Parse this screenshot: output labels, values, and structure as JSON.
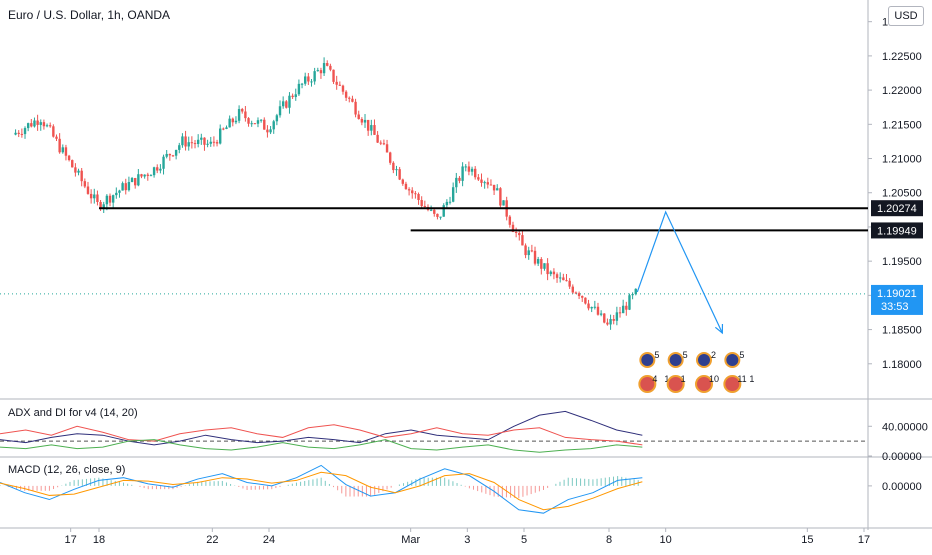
{
  "header": {
    "title": "Euro / U.S. Dollar, 1h, OANDA",
    "currency_button": "USD"
  },
  "colors": {
    "up": "#26a69a",
    "down": "#ef5350",
    "drawing": "#000000",
    "projection": "#2196f3",
    "last_price_bg": "#2196f3",
    "adx": "#2f2f7a",
    "plus_di": "#ef5350",
    "minus_di": "#4caf50",
    "macd_line": "#2196f3",
    "signal_line": "#ff9800"
  },
  "price_axis": {
    "ticks": [
      "1.23000",
      "1.22500",
      "1.22000",
      "1.21500",
      "1.21000",
      "1.20500",
      "1.20000",
      "1.19500",
      "1.19000",
      "1.18500",
      "1.18000"
    ]
  },
  "time_axis": {
    "labels": [
      "17",
      "18",
      "22",
      "24",
      "Mar",
      "3",
      "5",
      "8",
      "10",
      "15",
      "17"
    ]
  },
  "chart_data": [
    {
      "type": "candlestick",
      "title": "Euro / U.S. Dollar, 1h, OANDA",
      "x_range": [
        "Feb 15",
        "Mar 17"
      ],
      "ylim": [
        1.175,
        1.232
      ],
      "y_scale": "linear",
      "close_path": [
        {
          "x": "Feb 15",
          "y": 1.2135
        },
        {
          "x": "Feb 16",
          "y": 1.216
        },
        {
          "x": "Feb 17",
          "y": 1.2095
        },
        {
          "x": "Feb 18",
          "y": 1.2032
        },
        {
          "x": "Feb 19",
          "y": 1.206
        },
        {
          "x": "Feb 20",
          "y": 1.2085
        },
        {
          "x": "Feb 21",
          "y": 1.2125
        },
        {
          "x": "Feb 22",
          "y": 1.212
        },
        {
          "x": "Feb 23",
          "y": 1.2165
        },
        {
          "x": "Feb 24",
          "y": 1.2145
        },
        {
          "x": "Feb 25",
          "y": 1.22
        },
        {
          "x": "Feb 26",
          "y": 1.2235
        },
        {
          "x": "Feb 27",
          "y": 1.218
        },
        {
          "x": "Feb 28",
          "y": 1.212
        },
        {
          "x": "Mar 1",
          "y": 1.2055
        },
        {
          "x": "Mar 2",
          "y": 1.201
        },
        {
          "x": "Mar 3",
          "y": 1.209
        },
        {
          "x": "Mar 4",
          "y": 1.206
        },
        {
          "x": "Mar 5",
          "y": 1.197
        },
        {
          "x": "Mar 6",
          "y": 1.193
        },
        {
          "x": "Mar 7",
          "y": 1.1905
        },
        {
          "x": "Mar 8",
          "y": 1.1855
        },
        {
          "x": "Mar 9",
          "y": 1.1902
        }
      ],
      "last_price": "1.19021",
      "countdown": "33:53",
      "horizontal_levels": [
        {
          "label": "1.20274",
          "price": 1.20274,
          "from": "Feb 18",
          "to": "Mar 17"
        },
        {
          "label": "1.19949",
          "price": 1.19949,
          "from": "Mar 1",
          "to": "Mar 17"
        }
      ],
      "projection": [
        {
          "x": "Mar 9",
          "y": 1.1905
        },
        {
          "x": "Mar 10",
          "y": 1.2022
        },
        {
          "x": "Mar 12",
          "y": 1.1845
        }
      ],
      "event_markers": [
        {
          "x": "Mar 9",
          "counts": [
            "5",
            "4",
            "1"
          ]
        },
        {
          "x": "Mar 10",
          "counts": [
            "5",
            "1"
          ]
        },
        {
          "x": "Mar 11",
          "counts": [
            "2",
            "10"
          ]
        },
        {
          "x": "Mar 12",
          "counts": [
            "5",
            "11",
            "1"
          ]
        }
      ]
    },
    {
      "type": "line",
      "title": "ADX and DI for v4 (14, 20)",
      "ticks": [
        "40.00000",
        "0.00000"
      ],
      "ylim": [
        0,
        70
      ],
      "reference_line": 20,
      "series": [
        {
          "key": "adx",
          "values": [
            22,
            18,
            25,
            30,
            28,
            20,
            15,
            20,
            28,
            22,
            18,
            20,
            25,
            22,
            18,
            30,
            35,
            28,
            25,
            22,
            40,
            55,
            60,
            48,
            35,
            28
          ]
        },
        {
          "key": "plus_di",
          "values": [
            30,
            35,
            28,
            40,
            32,
            22,
            20,
            30,
            35,
            38,
            30,
            25,
            38,
            42,
            35,
            25,
            30,
            38,
            30,
            28,
            35,
            38,
            25,
            22,
            20,
            15
          ]
        },
        {
          "key": "minus_di",
          "values": [
            12,
            10,
            15,
            10,
            12,
            20,
            22,
            15,
            10,
            8,
            12,
            18,
            12,
            10,
            15,
            22,
            10,
            8,
            12,
            15,
            8,
            5,
            8,
            10,
            15,
            12
          ]
        }
      ]
    },
    {
      "type": "line",
      "title": "MACD (12, 26, close, 9)",
      "ticks": [
        "0.00000"
      ],
      "ylim": [
        -0.005,
        0.0035
      ],
      "series": [
        {
          "key": "macd_line",
          "values": [
            0.0005,
            -0.001,
            -0.002,
            -0.0005,
            0.0008,
            0.0012,
            0.0003,
            -0.0002,
            0.001,
            0.0018,
            0.0005,
            0.0,
            0.0012,
            0.003,
            0.0002,
            -0.0015,
            -0.001,
            0.001,
            0.0025,
            0.0015,
            -0.0008,
            -0.0035,
            -0.004,
            -0.002,
            -0.001,
            0.0008,
            0.0012
          ]
        },
        {
          "key": "signal_line",
          "values": [
            0.0004,
            -0.0004,
            -0.0014,
            -0.0012,
            -0.0002,
            0.0008,
            0.0007,
            0.0002,
            0.0005,
            0.0012,
            0.001,
            0.0004,
            0.0008,
            0.002,
            0.0015,
            -0.0002,
            -0.001,
            0.0,
            0.0015,
            0.0018,
            0.0005,
            -0.002,
            -0.0035,
            -0.003,
            -0.0018,
            -0.0004,
            0.0006
          ]
        }
      ]
    }
  ]
}
